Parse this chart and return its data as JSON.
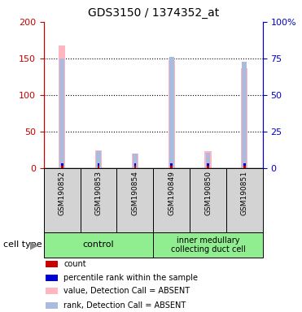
{
  "title": "GDS3150 / 1374352_at",
  "samples": [
    "GSM190852",
    "GSM190853",
    "GSM190854",
    "GSM190849",
    "GSM190850",
    "GSM190851"
  ],
  "value_absent": [
    168,
    25,
    20,
    148,
    24,
    137
  ],
  "rank_absent": [
    75,
    12,
    10,
    76,
    11,
    73
  ],
  "ylim_left": [
    0,
    200
  ],
  "ylim_right": [
    0,
    100
  ],
  "yticks_left": [
    0,
    50,
    100,
    150,
    200
  ],
  "yticks_right": [
    0,
    25,
    50,
    75,
    100
  ],
  "ytick_labels_right": [
    "0",
    "25",
    "50",
    "75",
    "100%"
  ],
  "left_color": "#cc0000",
  "right_color": "#0000cc",
  "value_absent_color": "#FFB6C1",
  "rank_absent_color": "#AABBDD",
  "count_color": "#cc0000",
  "rank_color": "#0000cc",
  "bg_color": "#ffffff",
  "grid_lines": [
    50,
    100,
    150
  ],
  "cell_type_label": "cell type",
  "legend_items": [
    [
      "#cc0000",
      "count"
    ],
    [
      "#0000cc",
      "percentile rank within the sample"
    ],
    [
      "#FFB6C1",
      "value, Detection Call = ABSENT"
    ],
    [
      "#AABBDD",
      "rank, Detection Call = ABSENT"
    ]
  ]
}
